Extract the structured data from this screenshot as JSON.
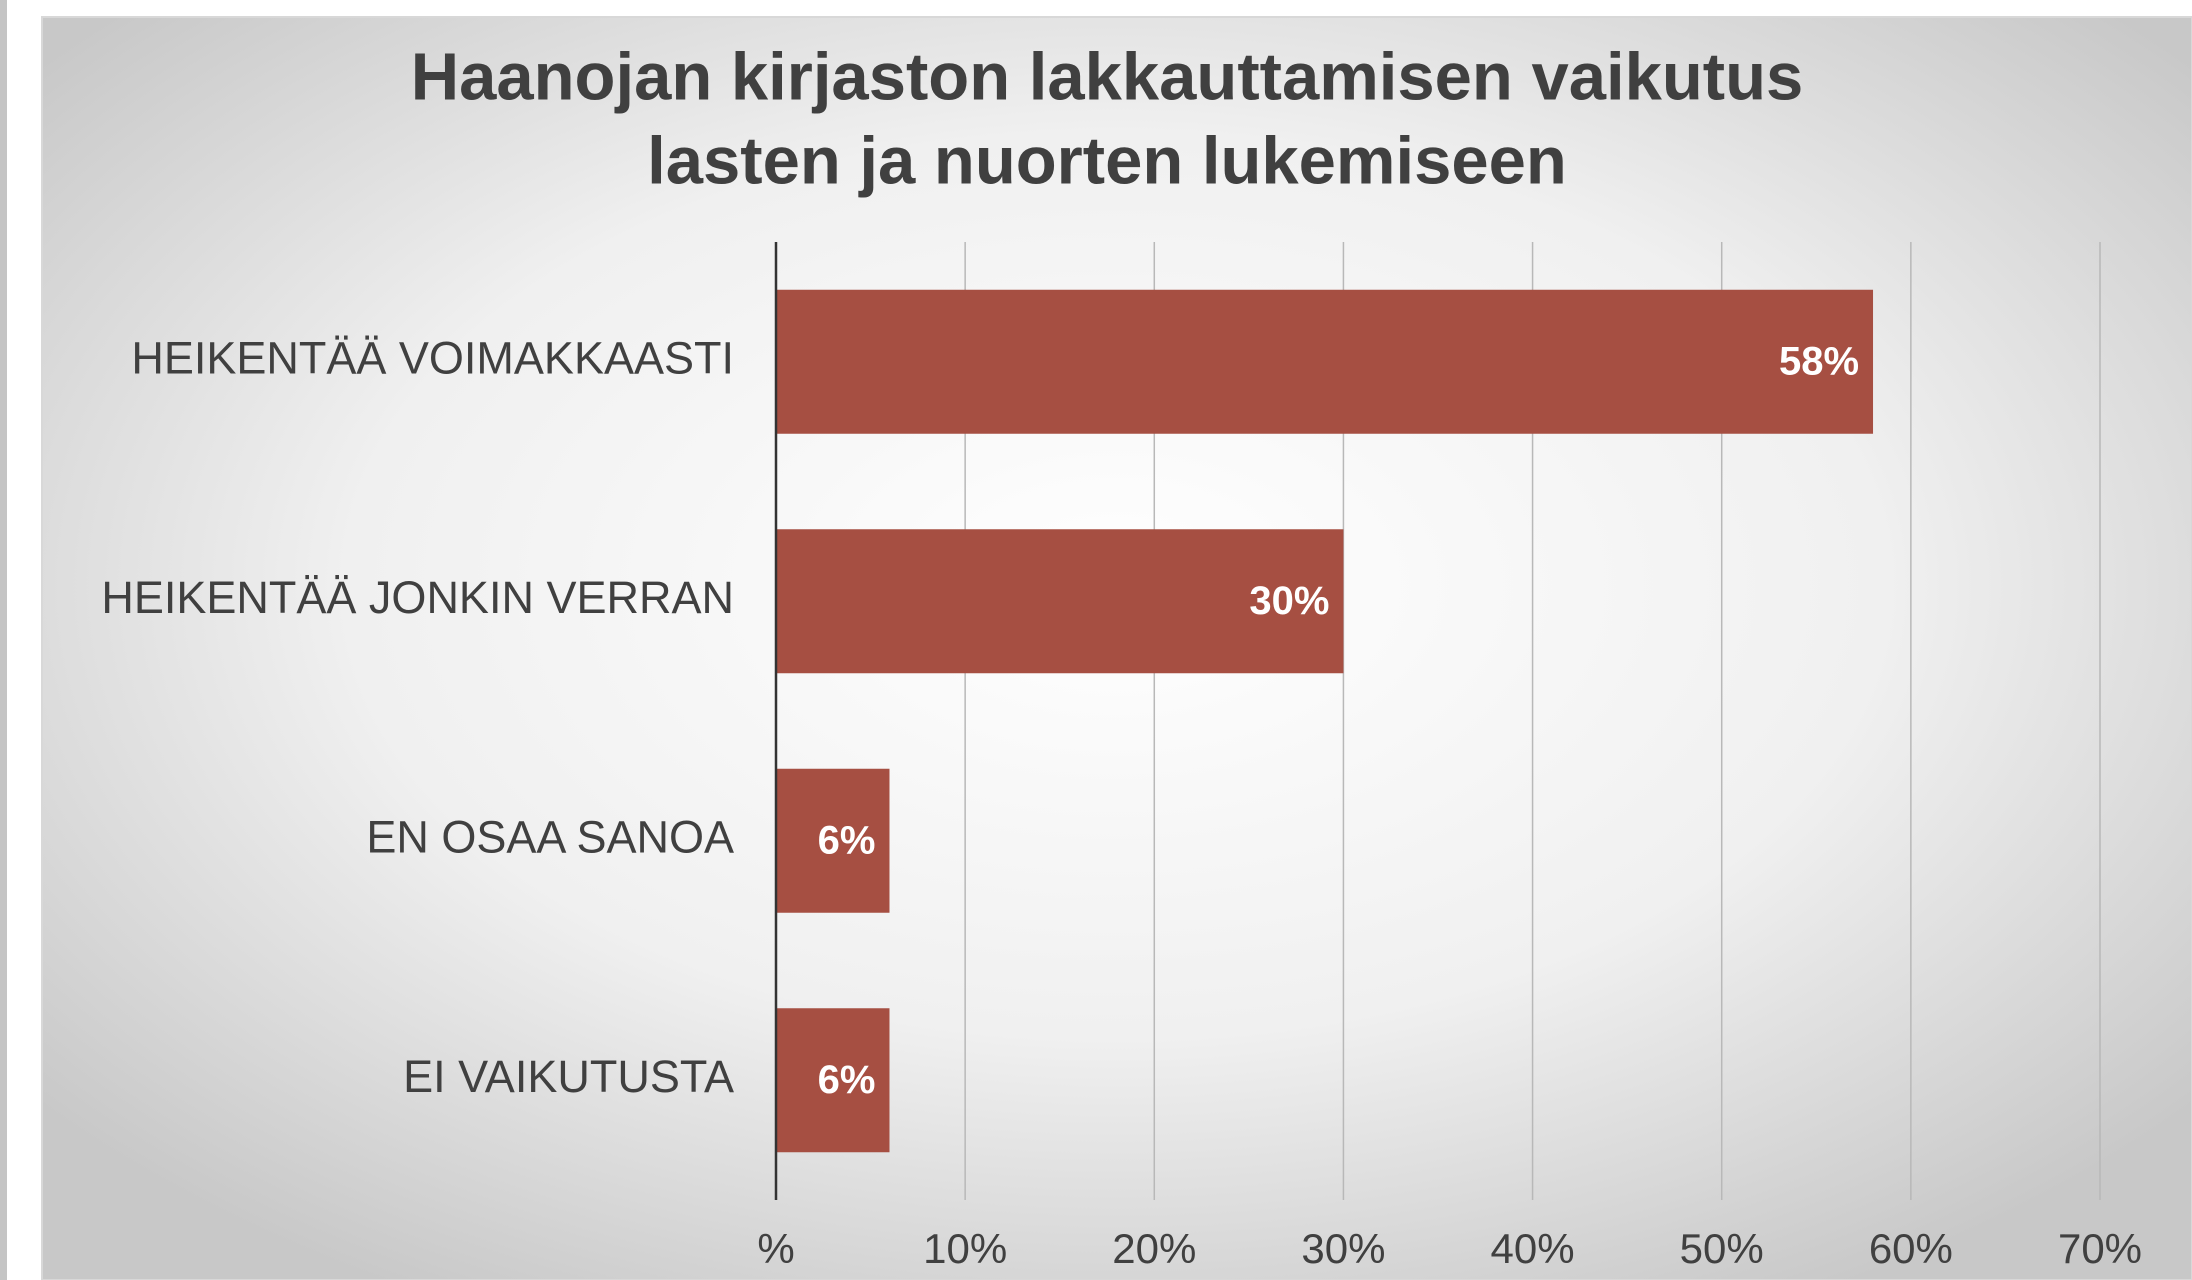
{
  "chart_data": {
    "type": "bar",
    "orientation": "horizontal",
    "title": [
      "Haanojan kirjaston lakkauttamisen vaikutus",
      "lasten ja nuorten lukemiseen"
    ],
    "categories": [
      "HEIKENTÄÄ VOIMAKKAASTI",
      "HEIKENTÄÄ JONKIN VERRAN",
      "EN OSAA SANOA",
      "EI VAIKUTUSTA"
    ],
    "values": [
      58,
      30,
      6,
      6
    ],
    "value_labels": [
      "58%",
      "30%",
      "6%",
      "6%"
    ],
    "color": "#a64f42",
    "xlim": [
      0,
      70
    ],
    "xticks": [
      {
        "value": 0,
        "label": "%"
      },
      {
        "value": 10,
        "label": "10%"
      },
      {
        "value": 20,
        "label": "20%"
      },
      {
        "value": 30,
        "label": "30%"
      },
      {
        "value": 40,
        "label": "40%"
      },
      {
        "value": 50,
        "label": "50%"
      },
      {
        "value": 60,
        "label": "60%"
      },
      {
        "value": 70,
        "label": "70%"
      }
    ],
    "grid": true
  }
}
